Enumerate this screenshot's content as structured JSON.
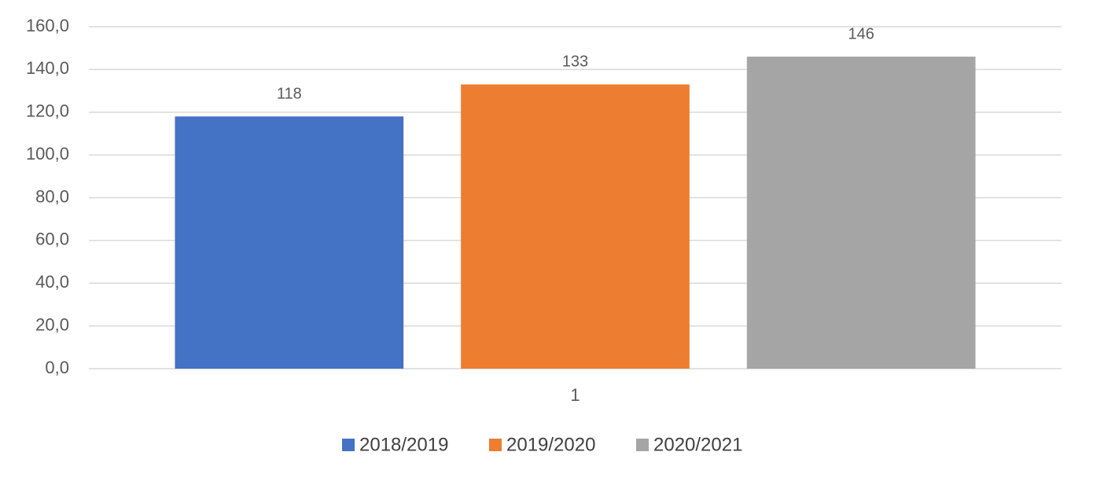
{
  "chart_data": {
    "type": "bar",
    "categories": [
      "1"
    ],
    "series": [
      {
        "name": "2018/2019",
        "color": "#4472c4",
        "values": [
          118
        ],
        "value_labels": [
          "118"
        ]
      },
      {
        "name": "2019/2020",
        "color": "#ed7d31",
        "values": [
          133
        ],
        "value_labels": [
          "133"
        ]
      },
      {
        "name": "2020/2021",
        "color": "#a5a5a5",
        "values": [
          146
        ],
        "value_labels": [
          "146"
        ]
      }
    ],
    "ylim": [
      0,
      160
    ],
    "yticks": [
      {
        "value": 0,
        "label": "0,0"
      },
      {
        "value": 20,
        "label": "20,0"
      },
      {
        "value": 40,
        "label": "40,0"
      },
      {
        "value": 60,
        "label": "60,0"
      },
      {
        "value": 80,
        "label": "80,0"
      },
      {
        "value": 100,
        "label": "100,0"
      },
      {
        "value": 120,
        "label": "120,0"
      },
      {
        "value": 140,
        "label": "140,0"
      },
      {
        "value": 160,
        "label": "160,0"
      }
    ],
    "grid": true,
    "legend": "bottom"
  }
}
